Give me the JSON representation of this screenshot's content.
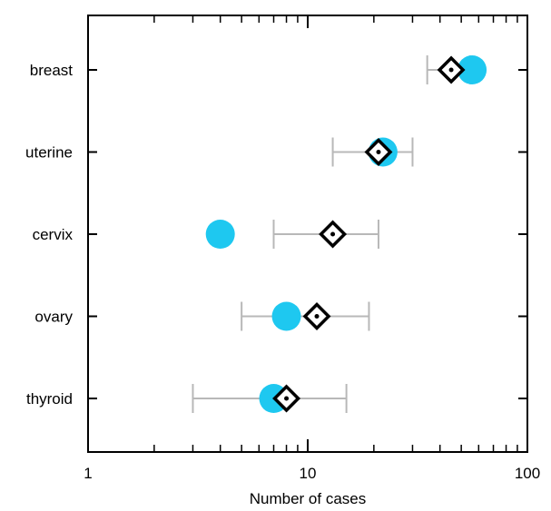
{
  "chart_data": {
    "type": "scatter",
    "title": "",
    "xlabel": "Number of cases",
    "ylabel": "",
    "x_scale": "log",
    "xlim": [
      1,
      100
    ],
    "x_ticks": [
      {
        "value": 1,
        "label": "1"
      },
      {
        "value": 10,
        "label": "10"
      },
      {
        "value": 100,
        "label": "100"
      }
    ],
    "categories": [
      "breast",
      "uterine",
      "cervix",
      "ovary",
      "thyroid"
    ],
    "series": [
      {
        "marker": "circle",
        "color": "#1ec8f0",
        "values": [
          56,
          22,
          4,
          8,
          7
        ]
      },
      {
        "marker": "diamond",
        "color": "#000000",
        "values": [
          45,
          21,
          13,
          11,
          8
        ],
        "error_low": [
          35,
          13,
          7,
          5,
          3
        ],
        "error_high": [
          55,
          30,
          21,
          19,
          15
        ]
      }
    ],
    "error_bar_color": "#b8b8b8",
    "grid": false,
    "legend": "none"
  }
}
